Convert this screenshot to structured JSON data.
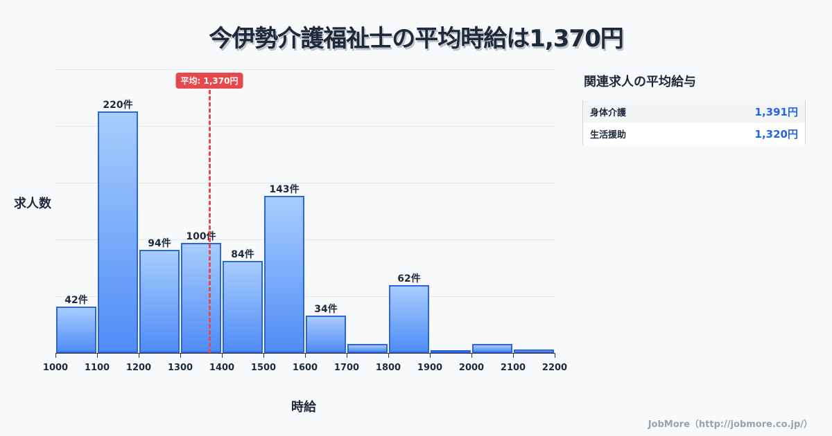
{
  "title": "今伊勢介護福祉士の平均時給は1,370円",
  "chart_data": {
    "type": "bar",
    "title": "今伊勢介護福祉士の平均時給は1,370円",
    "xlabel": "時給",
    "ylabel": "求人数",
    "bins": [
      [
        1000,
        1100
      ],
      [
        1100,
        1200
      ],
      [
        1200,
        1300
      ],
      [
        1300,
        1400
      ],
      [
        1400,
        1500
      ],
      [
        1500,
        1600
      ],
      [
        1600,
        1700
      ],
      [
        1700,
        1800
      ],
      [
        1800,
        1900
      ],
      [
        1900,
        2000
      ],
      [
        2000,
        2100
      ],
      [
        2100,
        2200
      ]
    ],
    "categories": [
      "1000-1100",
      "1100-1200",
      "1200-1300",
      "1300-1400",
      "1400-1500",
      "1500-1600",
      "1600-1700",
      "1700-1800",
      "1800-1900",
      "1900-2000",
      "2000-2100",
      "2100-2200"
    ],
    "values": [
      42,
      220,
      94,
      100,
      84,
      143,
      34,
      8,
      62,
      1,
      8,
      3
    ],
    "labels": [
      "42件",
      "220件",
      "94件",
      "100件",
      "84件",
      "143件",
      "34件",
      "",
      "62件",
      "",
      "",
      ""
    ],
    "xticks": [
      "1000",
      "1100",
      "1200",
      "1300",
      "1400",
      "1500",
      "1600",
      "1700",
      "1800",
      "1900",
      "2000",
      "2100",
      "2200"
    ],
    "xlim": [
      1000,
      2200
    ],
    "ylim": [
      0,
      258
    ],
    "mean": 1370,
    "mean_label": "平均: 1,370円",
    "grid": true
  },
  "side": {
    "title": "関連求人の平均給与",
    "rows": [
      {
        "label": "身体介護",
        "value": "1,391円"
      },
      {
        "label": "生活援助",
        "value": "1,320円"
      }
    ]
  },
  "footer": "JobMore（http://jobmore.co.jp/）"
}
